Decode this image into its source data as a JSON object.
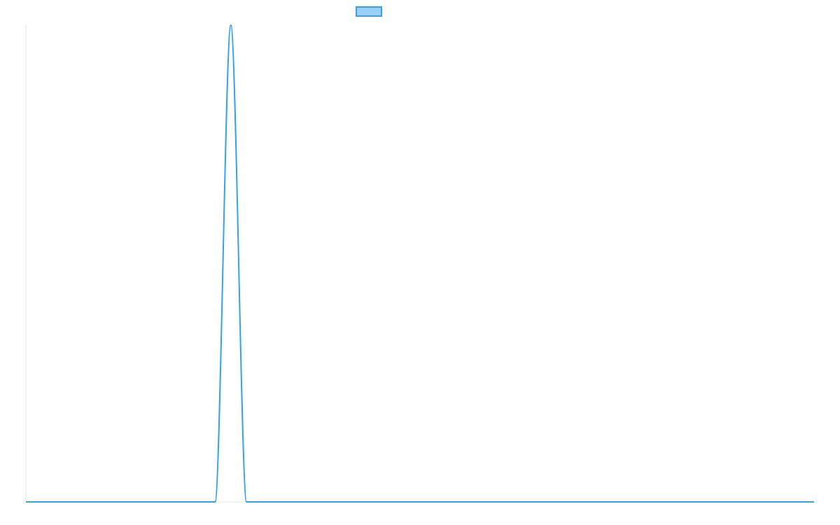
{
  "chart_data": {
    "type": "line",
    "title": "",
    "xlabel": "",
    "ylabel": "",
    "grid": false,
    "legend_position": "top-center",
    "series": [
      {
        "name": "",
        "color": "#36a2eb",
        "fill": "#9ad0f5",
        "x": [
          0,
          1,
          2,
          3,
          4,
          5,
          6,
          7,
          8,
          9,
          10,
          11,
          12,
          13,
          14,
          15,
          16,
          17,
          18,
          19,
          20,
          21,
          22,
          23,
          24,
          25,
          26,
          27,
          28,
          29,
          30,
          31,
          32,
          33,
          34,
          35,
          36,
          37,
          38,
          39,
          40,
          41,
          42,
          43,
          44,
          45,
          46,
          47,
          48,
          49,
          50
        ],
        "values": [
          0,
          0,
          0,
          0,
          0,
          0,
          0,
          0,
          0,
          0,
          0,
          0,
          0,
          1,
          0,
          0,
          0,
          0,
          0,
          0,
          0,
          0,
          0,
          0,
          0,
          0,
          0,
          0,
          0,
          0,
          0,
          0,
          0,
          0,
          0,
          0,
          0,
          0,
          0,
          0,
          0,
          0,
          0,
          0,
          0,
          0,
          0,
          0,
          0,
          0,
          0
        ]
      }
    ],
    "xlim": [
      0,
      50
    ],
    "ylim": [
      0,
      1
    ]
  }
}
